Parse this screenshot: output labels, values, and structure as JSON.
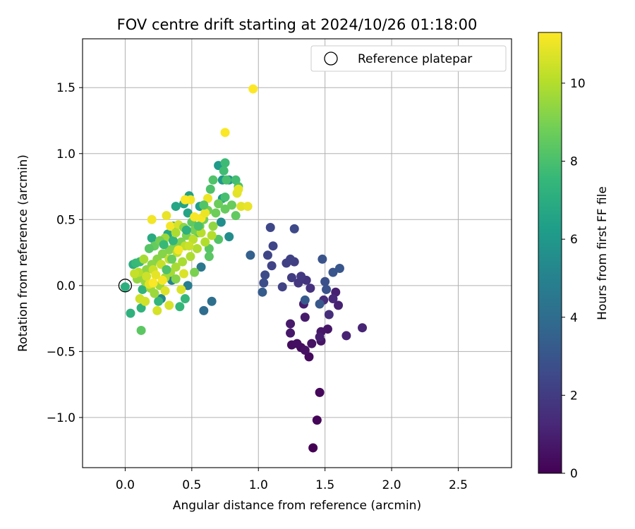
{
  "chart_data": {
    "type": "scatter",
    "title": "FOV centre drift starting at 2024/10/26 01:18:00",
    "xlabel": "Angular distance from reference (arcmin)",
    "ylabel": "Rotation from reference (arcmin)",
    "xlim": [
      -0.32,
      2.9
    ],
    "ylim": [
      -1.38,
      1.87
    ],
    "xticks": [
      0.0,
      0.5,
      1.0,
      1.5,
      2.0,
      2.5
    ],
    "xtick_labels": [
      "0.0",
      "0.5",
      "1.0",
      "1.5",
      "2.0",
      "2.5"
    ],
    "yticks": [
      -1.0,
      -0.5,
      0.0,
      0.5,
      1.0,
      1.5
    ],
    "ytick_labels": [
      "−1.0",
      "−0.5",
      "0.0",
      "0.5",
      "1.0",
      "1.5"
    ],
    "grid": true,
    "legend": {
      "position": "top-right",
      "label": "Reference platepar"
    },
    "reference_point": {
      "x": 0.0,
      "y": 0.0
    },
    "colorbar": {
      "label": "Hours from first FF file",
      "colormap": "viridis",
      "range": [
        0,
        11.3
      ],
      "ticks": [
        0,
        2,
        4,
        6,
        8,
        10
      ],
      "tick_labels": [
        "0",
        "2",
        "4",
        "6",
        "8",
        "10"
      ]
    },
    "colormap_stops": [
      "#440154",
      "#482878",
      "#3e4989",
      "#31688e",
      "#26828e",
      "#1f9e89",
      "#35b779",
      "#6ece58",
      "#b5de2b",
      "#fde725"
    ],
    "points": [
      [
        1.41,
        -1.23,
        0.0
      ],
      [
        1.44,
        -1.02,
        0.1
      ],
      [
        1.46,
        -0.81,
        0.2
      ],
      [
        1.38,
        -0.54,
        0.3
      ],
      [
        1.32,
        -0.47,
        0.35
      ],
      [
        1.25,
        -0.45,
        0.4
      ],
      [
        1.29,
        -0.44,
        0.45
      ],
      [
        1.35,
        -0.49,
        0.5
      ],
      [
        1.4,
        -0.44,
        0.55
      ],
      [
        1.47,
        -0.42,
        0.6
      ],
      [
        1.52,
        -0.33,
        0.65
      ],
      [
        1.47,
        -0.35,
        0.7
      ],
      [
        1.24,
        -0.36,
        0.75
      ],
      [
        1.24,
        -0.29,
        0.8
      ],
      [
        1.35,
        -0.24,
        0.85
      ],
      [
        1.34,
        -0.14,
        0.9
      ],
      [
        1.46,
        -0.39,
        0.95
      ],
      [
        1.58,
        -0.05,
        1.0
      ],
      [
        1.6,
        -0.15,
        1.05
      ],
      [
        1.66,
        -0.38,
        1.1
      ],
      [
        1.78,
        -0.32,
        1.15
      ],
      [
        1.56,
        -0.1,
        1.3
      ],
      [
        1.49,
        -0.11,
        1.4
      ],
      [
        1.53,
        -0.22,
        1.5
      ],
      [
        1.39,
        -0.02,
        1.6
      ],
      [
        1.36,
        0.04,
        1.7
      ],
      [
        1.3,
        0.02,
        1.8
      ],
      [
        1.32,
        0.07,
        1.9
      ],
      [
        1.25,
        0.06,
        2.0
      ],
      [
        1.27,
        0.18,
        2.1
      ],
      [
        1.21,
        0.17,
        2.15
      ],
      [
        1.24,
        0.2,
        2.2
      ],
      [
        1.18,
        -0.01,
        2.25
      ],
      [
        1.1,
        0.15,
        2.3
      ],
      [
        1.11,
        0.3,
        2.35
      ],
      [
        1.07,
        0.23,
        2.4
      ],
      [
        1.09,
        0.44,
        2.45
      ],
      [
        1.27,
        0.43,
        2.5
      ],
      [
        1.05,
        0.08,
        2.6
      ],
      [
        1.04,
        0.02,
        2.7
      ],
      [
        1.5,
        0.03,
        2.8
      ],
      [
        1.51,
        -0.03,
        2.85
      ],
      [
        1.48,
        0.2,
        2.9
      ],
      [
        1.56,
        0.1,
        3.0
      ],
      [
        1.61,
        0.13,
        3.05
      ],
      [
        1.46,
        -0.14,
        3.1
      ],
      [
        1.35,
        -0.11,
        3.2
      ],
      [
        1.03,
        -0.05,
        3.3
      ],
      [
        0.94,
        0.23,
        3.5
      ],
      [
        0.59,
        -0.19,
        4.0
      ],
      [
        0.65,
        -0.12,
        4.1
      ],
      [
        0.57,
        0.14,
        4.5
      ],
      [
        0.47,
        0.0,
        4.8
      ],
      [
        0.35,
        0.04,
        5.0
      ],
      [
        0.27,
        -0.1,
        5.3
      ],
      [
        0.78,
        0.37,
        5.5
      ],
      [
        0.72,
        0.48,
        5.6
      ],
      [
        0.78,
        0.8,
        5.8
      ],
      [
        0.73,
        0.8,
        6.0
      ],
      [
        0.7,
        0.91,
        6.1
      ],
      [
        0.73,
        0.66,
        6.2
      ],
      [
        0.56,
        0.6,
        6.3
      ],
      [
        0.48,
        0.68,
        6.4
      ],
      [
        0.44,
        0.62,
        6.5
      ],
      [
        0.47,
        0.55,
        6.6
      ],
      [
        0.38,
        0.6,
        6.7
      ],
      [
        0.32,
        0.39,
        6.75
      ],
      [
        0.36,
        0.45,
        6.8
      ],
      [
        0.2,
        0.36,
        6.9
      ],
      [
        0.06,
        0.16,
        7.0
      ],
      [
        0.0,
        -0.01,
        7.1
      ],
      [
        0.04,
        -0.21,
        7.2
      ],
      [
        0.12,
        -0.17,
        7.3
      ],
      [
        0.13,
        -0.03,
        7.35
      ],
      [
        0.25,
        -0.12,
        7.4
      ],
      [
        0.41,
        -0.16,
        7.5
      ],
      [
        0.45,
        -0.1,
        7.55
      ],
      [
        0.08,
        0.17,
        7.6
      ],
      [
        0.11,
        0.18,
        7.65
      ],
      [
        0.75,
        0.93,
        7.7
      ],
      [
        0.74,
        0.87,
        7.8
      ],
      [
        0.83,
        0.8,
        7.85
      ],
      [
        0.75,
        0.67,
        7.9
      ],
      [
        0.76,
        0.8,
        7.95
      ],
      [
        0.85,
        0.75,
        8.0
      ],
      [
        0.64,
        0.73,
        8.1
      ],
      [
        0.66,
        0.8,
        8.15
      ],
      [
        0.7,
        0.35,
        8.2
      ],
      [
        0.63,
        0.28,
        8.3
      ],
      [
        0.63,
        0.22,
        8.35
      ],
      [
        0.55,
        0.4,
        8.4
      ],
      [
        0.5,
        0.48,
        8.45
      ],
      [
        0.83,
        0.53,
        8.5
      ],
      [
        0.75,
        0.58,
        8.6
      ],
      [
        0.8,
        0.61,
        8.65
      ],
      [
        0.7,
        0.62,
        8.7
      ],
      [
        0.68,
        0.55,
        8.75
      ],
      [
        0.62,
        0.57,
        8.8
      ],
      [
        0.59,
        0.5,
        8.85
      ],
      [
        0.56,
        0.45,
        8.9
      ],
      [
        0.52,
        0.42,
        8.95
      ],
      [
        0.46,
        0.38,
        9.0
      ],
      [
        0.42,
        0.33,
        9.05
      ],
      [
        0.37,
        0.3,
        9.1
      ],
      [
        0.33,
        0.27,
        9.15
      ],
      [
        0.28,
        0.24,
        9.2
      ],
      [
        0.24,
        0.2,
        9.25
      ],
      [
        0.2,
        0.16,
        9.3
      ],
      [
        0.16,
        0.12,
        9.35
      ],
      [
        0.12,
        0.08,
        9.4
      ],
      [
        0.09,
        0.05,
        9.45
      ],
      [
        0.15,
        0.03,
        9.5
      ],
      [
        0.19,
        -0.02,
        9.55
      ],
      [
        0.22,
        -0.06,
        9.6
      ],
      [
        0.26,
        0.0,
        9.65
      ],
      [
        0.3,
        0.06,
        9.7
      ],
      [
        0.34,
        0.1,
        9.75
      ],
      [
        0.38,
        0.14,
        9.8
      ],
      [
        0.43,
        0.18,
        9.85
      ],
      [
        0.49,
        0.22,
        9.9
      ],
      [
        0.54,
        0.28,
        9.95
      ],
      [
        0.6,
        0.33,
        10.0
      ],
      [
        0.65,
        0.38,
        10.05
      ],
      [
        0.57,
        0.4,
        10.1
      ],
      [
        0.51,
        0.35,
        10.15
      ],
      [
        0.45,
        0.3,
        10.2
      ],
      [
        0.39,
        0.25,
        10.25
      ],
      [
        0.33,
        0.2,
        10.3
      ],
      [
        0.27,
        0.16,
        10.35
      ],
      [
        0.21,
        0.12,
        10.4
      ],
      [
        0.16,
        0.07,
        10.45
      ],
      [
        0.11,
        -0.1,
        10.5
      ],
      [
        0.15,
        -0.12,
        10.55
      ],
      [
        0.24,
        -0.19,
        10.6
      ],
      [
        0.33,
        -0.15,
        10.65
      ],
      [
        0.42,
        -0.03,
        10.7
      ],
      [
        0.3,
        -0.04,
        10.75
      ],
      [
        0.87,
        0.6,
        10.8
      ],
      [
        0.84,
        0.7,
        10.85
      ],
      [
        0.85,
        0.73,
        10.9
      ],
      [
        0.92,
        0.6,
        10.95
      ],
      [
        0.62,
        0.66,
        11.0
      ],
      [
        0.49,
        0.65,
        11.05
      ],
      [
        0.2,
        0.5,
        11.1
      ],
      [
        0.34,
        0.45,
        11.15
      ],
      [
        0.57,
        0.51,
        11.2
      ],
      [
        0.75,
        1.16,
        11.25
      ],
      [
        0.96,
        1.49,
        11.3
      ],
      [
        0.6,
        0.55,
        11.0
      ],
      [
        0.52,
        0.52,
        11.2
      ],
      [
        0.4,
        0.46,
        10.6
      ],
      [
        0.3,
        0.36,
        9.6
      ],
      [
        0.22,
        0.3,
        8.6
      ],
      [
        0.18,
        0.28,
        8.3
      ],
      [
        0.26,
        0.34,
        8.9
      ],
      [
        0.44,
        0.44,
        9.3
      ],
      [
        0.36,
        0.34,
        7.4
      ],
      [
        0.46,
        0.42,
        7.2
      ],
      [
        0.55,
        0.45,
        8.0
      ],
      [
        0.48,
        0.3,
        10.4
      ],
      [
        0.28,
        0.04,
        11.2
      ],
      [
        0.23,
        0.08,
        10.9
      ],
      [
        0.31,
        0.12,
        8.1
      ],
      [
        0.38,
        0.05,
        9.2
      ],
      [
        0.14,
        0.2,
        9.8
      ],
      [
        0.1,
        0.1,
        10.1
      ],
      [
        0.07,
        0.09,
        10.3
      ],
      [
        0.18,
        0.01,
        10.8
      ],
      [
        0.12,
        -0.34,
        8.4
      ],
      [
        0.21,
        0.02,
        11.25
      ],
      [
        0.44,
        0.09,
        10.7
      ],
      [
        0.52,
        0.1,
        9.0
      ],
      [
        0.4,
        0.27,
        11.1
      ],
      [
        0.29,
        0.31,
        7.6
      ],
      [
        0.35,
        0.2,
        8.7
      ],
      [
        0.59,
        0.61,
        8.2
      ],
      [
        0.66,
        0.45,
        9.4
      ],
      [
        0.45,
        0.65,
        11.25
      ],
      [
        0.31,
        0.53,
        10.95
      ],
      [
        0.38,
        0.4,
        9.9
      ]
    ]
  }
}
